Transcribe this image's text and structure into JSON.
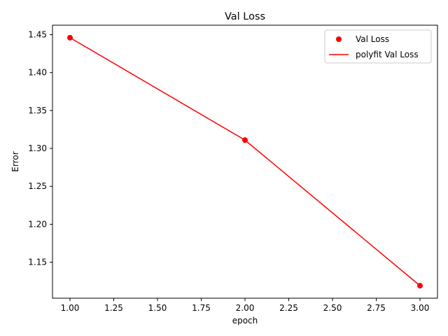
{
  "chart_data": {
    "type": "line",
    "title": "Val Loss",
    "xlabel": "epoch",
    "ylabel": "Error",
    "xlim": [
      0.9,
      3.1
    ],
    "ylim": [
      1.1025,
      1.4625
    ],
    "x_ticks": [
      1.0,
      1.25,
      1.5,
      1.75,
      2.0,
      2.25,
      2.5,
      2.75,
      3.0
    ],
    "x_tick_labels": [
      "1.00",
      "1.25",
      "1.50",
      "1.75",
      "2.00",
      "2.25",
      "2.50",
      "2.75",
      "3.00"
    ],
    "y_ticks": [
      1.15,
      1.2,
      1.25,
      1.3,
      1.35,
      1.4,
      1.45
    ],
    "y_tick_labels": [
      "1.15",
      "1.20",
      "1.25",
      "1.30",
      "1.35",
      "1.40",
      "1.45"
    ],
    "grid": false,
    "legend_position": "top-right",
    "series": [
      {
        "name": "Val Loss",
        "kind": "scatter",
        "color": "#ff0000",
        "x": [
          1,
          2,
          3
        ],
        "y": [
          1.446,
          1.311,
          1.119
        ]
      },
      {
        "name": "polyfit Val Loss",
        "kind": "line",
        "color": "#ff0000",
        "x": [
          1,
          2,
          3
        ],
        "y": [
          1.446,
          1.311,
          1.119
        ]
      }
    ]
  }
}
